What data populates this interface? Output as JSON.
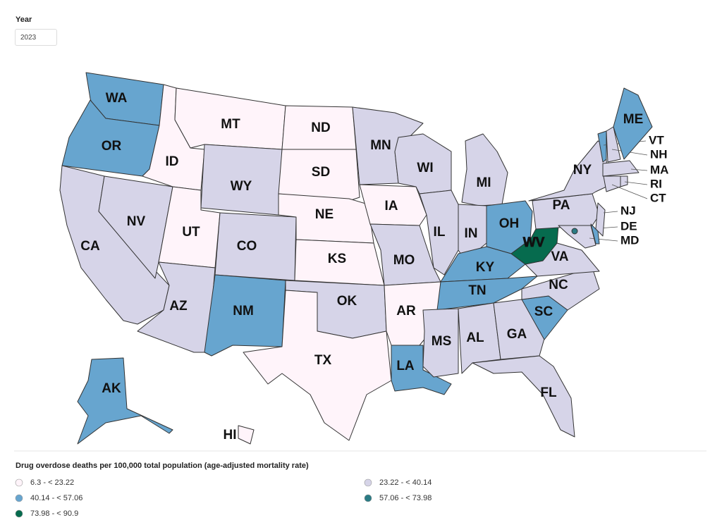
{
  "filter": {
    "label": "Year",
    "value": "2023"
  },
  "legend": {
    "title": "Drug overdose deaths per 100,000 total population (age-adjusted mortality rate)",
    "items": [
      {
        "label": "6.3 - < 23.22",
        "color": "#fff4fa"
      },
      {
        "label": "23.22 - < 40.14",
        "color": "#d6d4e8"
      },
      {
        "label": "40.14 - < 57.06",
        "color": "#67a5cf"
      },
      {
        "label": "57.06 - < 73.98",
        "color": "#2a7b84"
      },
      {
        "label": "73.98 - < 90.9",
        "color": "#066b4e"
      }
    ]
  },
  "states": [
    {
      "abbr": "WA",
      "color": "#67a5cf"
    },
    {
      "abbr": "OR",
      "color": "#67a5cf"
    },
    {
      "abbr": "CA",
      "color": "#d6d4e8"
    },
    {
      "abbr": "NV",
      "color": "#d6d4e8"
    },
    {
      "abbr": "ID",
      "color": "#fff4fa"
    },
    {
      "abbr": "MT",
      "color": "#fff4fa"
    },
    {
      "abbr": "WY",
      "color": "#d6d4e8"
    },
    {
      "abbr": "UT",
      "color": "#fff4fa"
    },
    {
      "abbr": "AZ",
      "color": "#d6d4e8"
    },
    {
      "abbr": "CO",
      "color": "#d6d4e8"
    },
    {
      "abbr": "NM",
      "color": "#67a5cf"
    },
    {
      "abbr": "ND",
      "color": "#fff4fa"
    },
    {
      "abbr": "SD",
      "color": "#fff4fa"
    },
    {
      "abbr": "NE",
      "color": "#fff4fa"
    },
    {
      "abbr": "KS",
      "color": "#fff4fa"
    },
    {
      "abbr": "OK",
      "color": "#d6d4e8"
    },
    {
      "abbr": "TX",
      "color": "#fff4fa"
    },
    {
      "abbr": "MN",
      "color": "#d6d4e8"
    },
    {
      "abbr": "IA",
      "color": "#fff4fa"
    },
    {
      "abbr": "MO",
      "color": "#d6d4e8"
    },
    {
      "abbr": "AR",
      "color": "#fff4fa"
    },
    {
      "abbr": "LA",
      "color": "#67a5cf"
    },
    {
      "abbr": "WI",
      "color": "#d6d4e8"
    },
    {
      "abbr": "IL",
      "color": "#d6d4e8"
    },
    {
      "abbr": "MI",
      "color": "#d6d4e8"
    },
    {
      "abbr": "IN",
      "color": "#d6d4e8"
    },
    {
      "abbr": "OH",
      "color": "#67a5cf"
    },
    {
      "abbr": "KY",
      "color": "#67a5cf"
    },
    {
      "abbr": "TN",
      "color": "#67a5cf"
    },
    {
      "abbr": "MS",
      "color": "#d6d4e8"
    },
    {
      "abbr": "AL",
      "color": "#d6d4e8"
    },
    {
      "abbr": "GA",
      "color": "#d6d4e8"
    },
    {
      "abbr": "FL",
      "color": "#d6d4e8"
    },
    {
      "abbr": "SC",
      "color": "#67a5cf"
    },
    {
      "abbr": "NC",
      "color": "#d6d4e8"
    },
    {
      "abbr": "VA",
      "color": "#d6d4e8"
    },
    {
      "abbr": "WV",
      "color": "#066b4e"
    },
    {
      "abbr": "PA",
      "color": "#d6d4e8"
    },
    {
      "abbr": "NY",
      "color": "#d6d4e8"
    },
    {
      "abbr": "MD",
      "color": "#d6d4e8"
    },
    {
      "abbr": "DE",
      "color": "#67a5cf"
    },
    {
      "abbr": "NJ",
      "color": "#d6d4e8"
    },
    {
      "abbr": "VT",
      "color": "#67a5cf"
    },
    {
      "abbr": "NH",
      "color": "#d6d4e8"
    },
    {
      "abbr": "MA",
      "color": "#d6d4e8"
    },
    {
      "abbr": "RI",
      "color": "#d6d4e8"
    },
    {
      "abbr": "CT",
      "color": "#d6d4e8"
    },
    {
      "abbr": "ME",
      "color": "#67a5cf"
    },
    {
      "abbr": "AK",
      "color": "#67a5cf"
    },
    {
      "abbr": "HI",
      "color": "#fff4fa"
    },
    {
      "color": "#2a7b84"
    }
  ]
}
